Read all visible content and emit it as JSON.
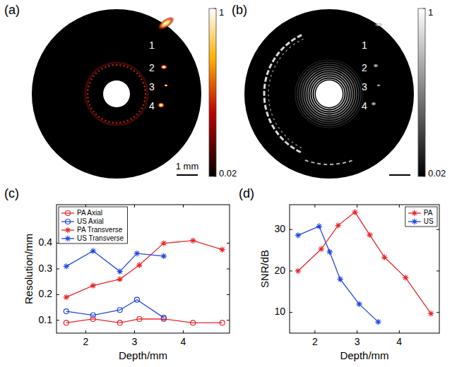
{
  "chart_data": [
    {
      "type": "image",
      "label": "(a)",
      "color": "hot",
      "annotations": [
        "1",
        "2",
        "3",
        "4"
      ],
      "scale_bar": "1 mm",
      "colorbar": {
        "range": [
          0.02,
          1
        ],
        "ticks": [
          0.02,
          1
        ]
      }
    },
    {
      "type": "image",
      "label": "(b)",
      "color": "gray",
      "annotations": [
        "1",
        "2",
        "3",
        "4"
      ],
      "colorbar": {
        "range": [
          0.02,
          1
        ],
        "ticks": [
          0.02,
          1
        ]
      }
    },
    {
      "type": "line",
      "label": "(c)",
      "x_label": "Depth/mm",
      "y_label": "Resolution/mm",
      "xlim": [
        1.4,
        4.95
      ],
      "xticks": [
        2,
        3,
        4
      ],
      "ylim": [
        0.05,
        0.55
      ],
      "yticks": [
        0.1,
        0.2,
        0.3,
        0.4
      ],
      "legend": "upper left",
      "series": [
        {
          "name": "PA Axial",
          "color": "#e8262a",
          "marker": "circle",
          "x": [
            1.6,
            2.15,
            2.7,
            3.1,
            3.6,
            4.2,
            4.8
          ],
          "values": [
            0.09,
            0.105,
            0.09,
            0.105,
            0.105,
            0.09,
            0.09
          ]
        },
        {
          "name": "US Axial",
          "color": "#2046e0",
          "marker": "circle",
          "x": [
            1.6,
            2.15,
            2.7,
            3.05,
            3.6
          ],
          "values": [
            0.135,
            0.12,
            0.14,
            0.18,
            0.11
          ]
        },
        {
          "name": "PA Transverse",
          "color": "#e8262a",
          "marker": "asterisk",
          "x": [
            1.6,
            2.15,
            2.7,
            3.1,
            3.6,
            4.2,
            4.8
          ],
          "values": [
            0.19,
            0.235,
            0.26,
            0.315,
            0.4,
            0.41,
            0.375
          ]
        },
        {
          "name": "US Transverse",
          "color": "#2046e0",
          "marker": "asterisk",
          "x": [
            1.6,
            2.15,
            2.7,
            3.05,
            3.6
          ],
          "values": [
            0.31,
            0.37,
            0.29,
            0.36,
            0.35
          ]
        }
      ]
    },
    {
      "type": "line",
      "label": "(d)",
      "x_label": "Depth/mm",
      "y_label": "SNR/dB",
      "xlim": [
        1.4,
        4.95
      ],
      "xticks": [
        2,
        3,
        4
      ],
      "ylim": [
        5,
        36
      ],
      "yticks": [
        10,
        20,
        30
      ],
      "legend": "upper right",
      "series": [
        {
          "name": "PA",
          "color": "#e8262a",
          "marker": "asterisk",
          "x": [
            1.6,
            2.15,
            2.55,
            2.95,
            3.3,
            3.65,
            4.15,
            4.75
          ],
          "values": [
            20,
            25.3,
            31,
            34.2,
            28.7,
            23.3,
            18.4,
            9.7
          ]
        },
        {
          "name": "US",
          "color": "#2046e0",
          "marker": "asterisk",
          "x": [
            1.6,
            2.1,
            2.35,
            2.6,
            3.05,
            3.5
          ],
          "values": [
            28.6,
            30.8,
            24.6,
            18,
            12,
            7.7
          ]
        }
      ]
    }
  ]
}
